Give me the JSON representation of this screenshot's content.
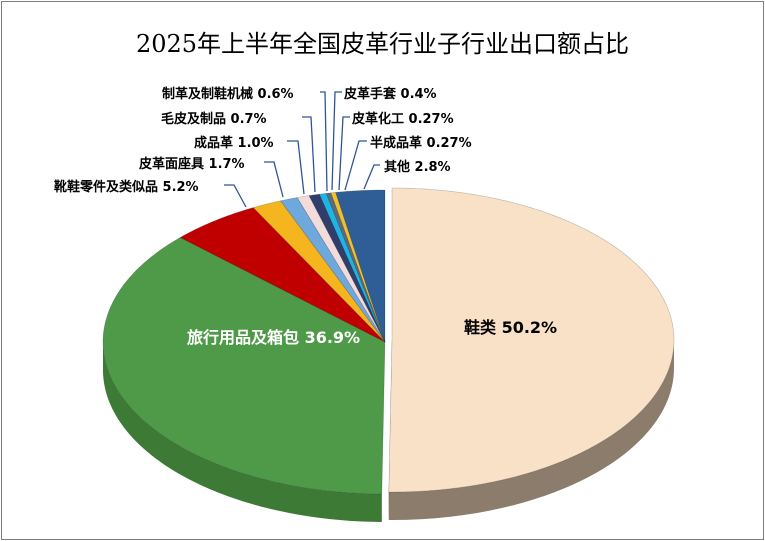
{
  "chart_data": {
    "type": "pie",
    "title": "2025年上半年全国皮革行业子行业出口额占比",
    "slices": [
      {
        "name": "鞋类",
        "value": 50.2,
        "label": "鞋类 50.2%",
        "color": "#F8E1C7",
        "side": "#8B7C6C"
      },
      {
        "name": "旅行用品及箱包",
        "value": 36.9,
        "label": "旅行用品及箱包 36.9%",
        "color": "#4E9A48",
        "side": "#3C7A36"
      },
      {
        "name": "靴鞋零件及类似品",
        "value": 5.2,
        "label": "靴鞋零件及类似品 5.2%",
        "color": "#C00000",
        "side": "#8A0000"
      },
      {
        "name": "皮革面座具",
        "value": 1.7,
        "label": "皮革面座具 1.7%",
        "color": "#F5B51E",
        "side": "#B88510"
      },
      {
        "name": "成品革",
        "value": 1.0,
        "label": "成品革 1.0%",
        "color": "#6FA8DC",
        "side": "#4F80AA"
      },
      {
        "name": "毛皮及制品",
        "value": 0.7,
        "label": "毛皮及制品 0.7%",
        "color": "#F2DCDB",
        "side": "#B8A4A3"
      },
      {
        "name": "制革及制鞋机械",
        "value": 0.6,
        "label": "制革及制鞋机械 0.6%",
        "color": "#2F3E6B",
        "side": "#1E2847"
      },
      {
        "name": "皮革手套",
        "value": 0.4,
        "label": "皮革手套 0.4%",
        "color": "#1EB4E6",
        "side": "#1584AA"
      },
      {
        "name": "皮革化工",
        "value": 0.27,
        "label": "皮革化工 0.27%",
        "color": "#5A6B7A",
        "side": "#3E4A55"
      },
      {
        "name": "半成品革",
        "value": 0.27,
        "label": "半成品革 0.27%",
        "color": "#F0C030",
        "side": "#B08A1E"
      },
      {
        "name": "其他",
        "value": 2.8,
        "label": "其他 2.8%",
        "color": "#2E5E95",
        "side": "#1E4068"
      }
    ],
    "start_angle": "top",
    "direction": "clockwise",
    "style": "3d",
    "legend": "none"
  }
}
